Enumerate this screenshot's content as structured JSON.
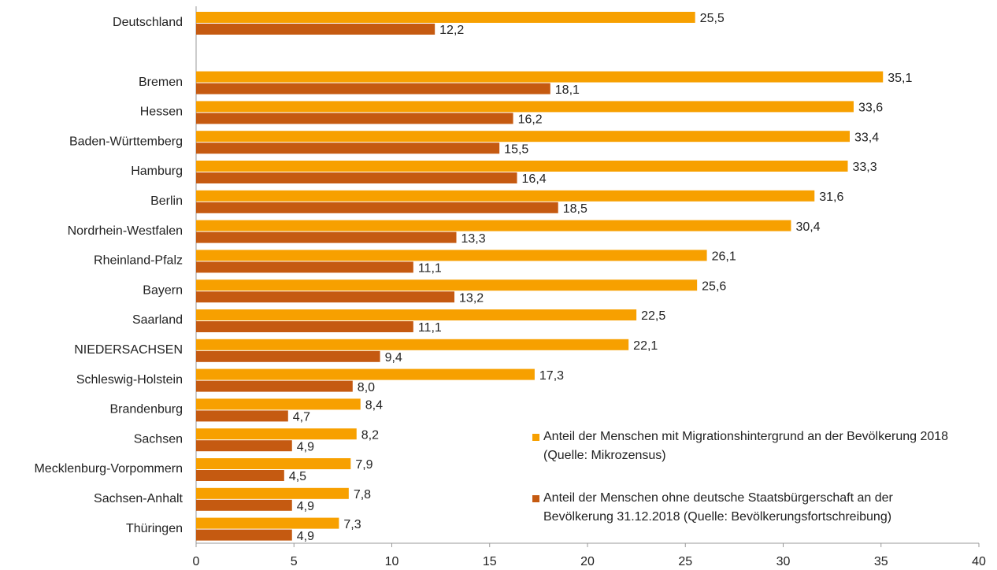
{
  "chart_data": {
    "type": "bar",
    "orientation": "horizontal",
    "categories": [
      "Deutschland",
      null,
      "Bremen",
      "Hessen",
      "Baden-Württemberg",
      "Hamburg",
      "Berlin",
      "Nordrhein-Westfalen",
      "Rheinland-Pfalz",
      "Bayern",
      "Saarland",
      "NIEDERSACHSEN",
      "Schleswig-Holstein",
      "Brandenburg",
      "Sachsen",
      "Mecklenburg-Vorpommern",
      "Sachsen-Anhalt",
      "Thüringen"
    ],
    "series": [
      {
        "name": "Anteil der Menschen mit Migrationshintergrund an der Bevölkerung 2018 (Quelle: Mikrozensus)",
        "color": "#f7a000",
        "values": [
          25.5,
          null,
          35.1,
          33.6,
          33.4,
          33.3,
          31.6,
          30.4,
          26.1,
          25.6,
          22.5,
          22.1,
          17.3,
          8.4,
          8.2,
          7.9,
          7.8,
          7.3
        ],
        "value_labels": [
          "25,5",
          null,
          "35,1",
          "33,6",
          "33,4",
          "33,3",
          "31,6",
          "30,4",
          "26,1",
          "25,6",
          "22,5",
          "22,1",
          "17,3",
          "8,4",
          "8,2",
          "7,9",
          "7,8",
          "7,3"
        ]
      },
      {
        "name": "Anteil der Menschen ohne deutsche Staatsbürgerschaft an der Bevölkerung 31.12.2018 (Quelle: Bevölkerungsfortschreibung)",
        "color": "#c55a11",
        "values": [
          12.2,
          null,
          18.1,
          16.2,
          15.5,
          16.4,
          18.5,
          13.3,
          11.1,
          13.2,
          11.1,
          9.4,
          8.0,
          4.7,
          4.9,
          4.5,
          4.9,
          4.9
        ],
        "value_labels": [
          "12,2",
          null,
          "18,1",
          "16,2",
          "15,5",
          "16,4",
          "18,5",
          "13,3",
          "11,1",
          "13,2",
          "11,1",
          "9,4",
          "8,0",
          "4,7",
          "4,9",
          "4,5",
          "4,9",
          "4,9"
        ]
      }
    ],
    "xlim": [
      0,
      40
    ],
    "xticks": [
      0,
      5,
      10,
      15,
      20,
      25,
      30,
      35,
      40
    ],
    "grid": false
  }
}
